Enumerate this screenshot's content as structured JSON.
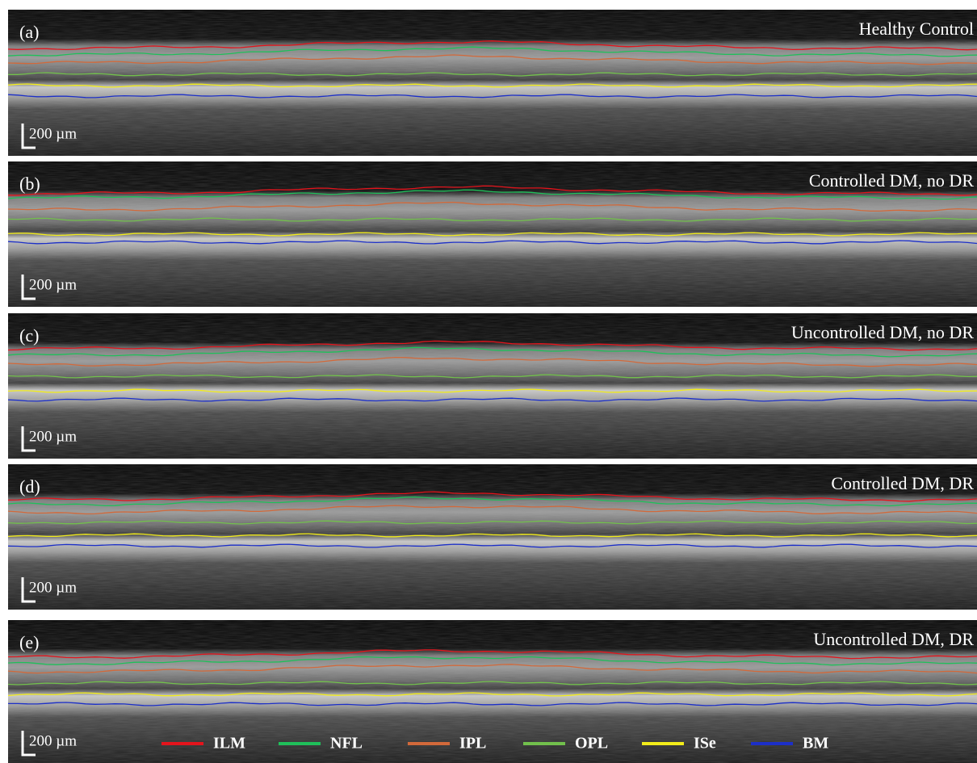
{
  "panels": [
    {
      "label": "(a)",
      "title": "Healthy Control",
      "scale_bar": "200 µm"
    },
    {
      "label": "(b)",
      "title": "Controlled DM, no DR",
      "scale_bar": "200 µm"
    },
    {
      "label": "(c)",
      "title": "Uncontrolled DM, no DR",
      "scale_bar": "200 µm"
    },
    {
      "label": "(d)",
      "title": "Controlled DM, DR",
      "scale_bar": "200 µm"
    },
    {
      "label": "(e)",
      "title": "Uncontrolled DM, DR",
      "scale_bar": "200 µm"
    }
  ],
  "legend": [
    {
      "name": "ILM",
      "color": "#e3141c"
    },
    {
      "name": "NFL",
      "color": "#1fbf5a"
    },
    {
      "name": "IPL",
      "color": "#d2693a"
    },
    {
      "name": "OPL",
      "color": "#72c04c"
    },
    {
      "name": "ISe",
      "color": "#f2ec1a"
    },
    {
      "name": "BM",
      "color": "#1c2fc8"
    }
  ]
}
